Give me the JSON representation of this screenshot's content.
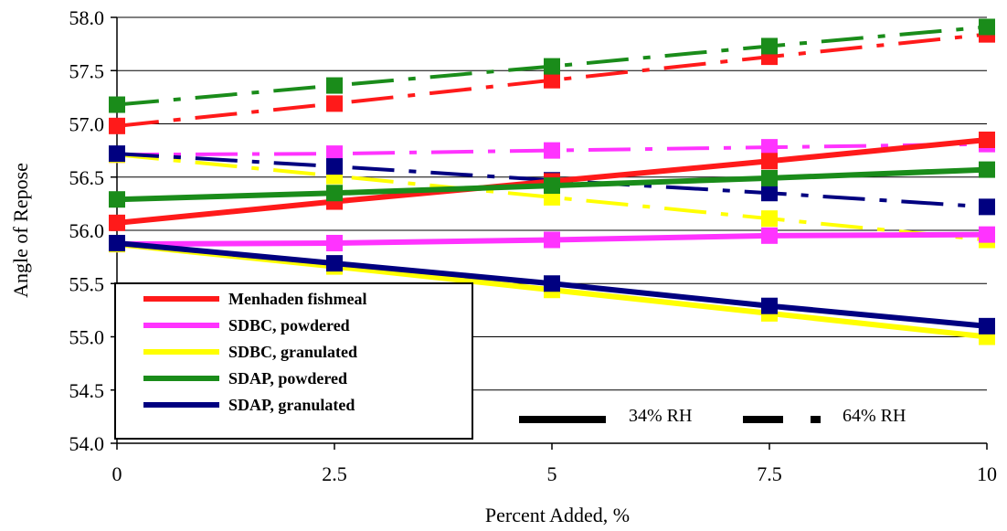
{
  "chart_data": {
    "type": "line",
    "title": "",
    "xlabel": "Percent Added, %",
    "ylabel": "Angle of Repose",
    "x": [
      0,
      2.5,
      5,
      7.5,
      10
    ],
    "x_tick_labels": [
      "0",
      "2.5",
      "5",
      "7.5",
      "10"
    ],
    "y_tick_labels": [
      "54.0",
      "54.5",
      "55.0",
      "55.5",
      "56.0",
      "56.5",
      "57.0",
      "57.5",
      "58.0"
    ],
    "xlim": [
      0,
      10
    ],
    "ylim": [
      54.0,
      58.0
    ],
    "grid": "horizontal",
    "legend_position": "lower-left",
    "series": [
      {
        "name": "Menhaden fishmeal",
        "color": "#ff1a1a",
        "rh": "34% RH",
        "dash": "solid",
        "values": [
          56.07,
          56.27,
          56.46,
          56.65,
          56.85
        ]
      },
      {
        "name": "SDBC, powdered",
        "color": "#ff33ff",
        "rh": "34% RH",
        "dash": "solid",
        "values": [
          55.87,
          55.88,
          55.91,
          55.95,
          55.96
        ]
      },
      {
        "name": "SDBC, granulated",
        "color": "#ffff00",
        "rh": "34% RH",
        "dash": "solid",
        "values": [
          55.87,
          55.66,
          55.44,
          55.22,
          55.0
        ]
      },
      {
        "name": "SDAP, powdered",
        "color": "#1a8c1a",
        "rh": "34% RH",
        "dash": "solid",
        "values": [
          56.29,
          56.35,
          56.42,
          56.49,
          56.57
        ]
      },
      {
        "name": "SDAP, granulated",
        "color": "#000080",
        "rh": "34% RH",
        "dash": "solid",
        "values": [
          55.88,
          55.69,
          55.5,
          55.29,
          55.1
        ]
      },
      {
        "name": "Menhaden fishmeal",
        "color": "#ff1a1a",
        "rh": "64% RH",
        "dash": "dash-dot",
        "values": [
          56.98,
          57.19,
          57.41,
          57.63,
          57.84
        ]
      },
      {
        "name": "SDBC, powdered",
        "color": "#ff33ff",
        "rh": "64% RH",
        "dash": "dash-dot",
        "values": [
          56.71,
          56.72,
          56.75,
          56.78,
          56.81
        ]
      },
      {
        "name": "SDBC, granulated",
        "color": "#ffff00",
        "rh": "64% RH",
        "dash": "dash-dot",
        "values": [
          56.71,
          56.51,
          56.31,
          56.11,
          55.91
        ]
      },
      {
        "name": "SDAP, powdered",
        "color": "#1a8c1a",
        "rh": "64% RH",
        "dash": "dash-dot",
        "values": [
          57.18,
          57.36,
          57.54,
          57.73,
          57.91
        ]
      },
      {
        "name": "SDAP, granulated",
        "color": "#000080",
        "rh": "64% RH",
        "dash": "dash-dot",
        "values": [
          56.72,
          56.6,
          56.47,
          56.35,
          56.22
        ]
      }
    ],
    "legend": [
      {
        "label": "Menhaden fishmeal",
        "color": "#ff1a1a"
      },
      {
        "label": "SDBC, powdered",
        "color": "#ff33ff"
      },
      {
        "label": "SDBC, granulated",
        "color": "#ffff00"
      },
      {
        "label": "SDAP, powdered",
        "color": "#1a8c1a"
      },
      {
        "label": "SDAP, granulated",
        "color": "#000080"
      }
    ],
    "line_style_legend": [
      {
        "label": "34% RH",
        "style": "solid"
      },
      {
        "label": "64% RH",
        "style": "dash-dot"
      }
    ]
  }
}
